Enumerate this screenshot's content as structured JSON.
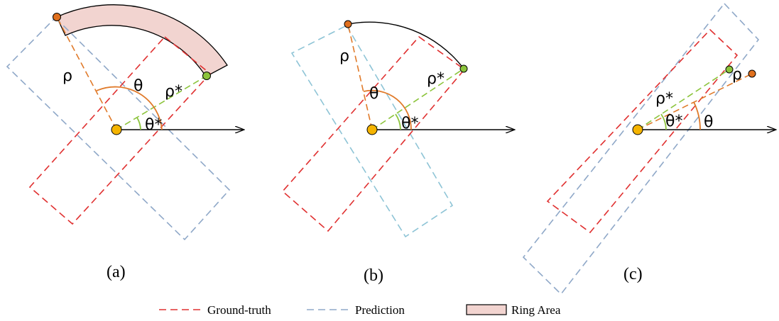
{
  "panels": [
    {
      "caption": "(a)",
      "labels": {
        "rho": "ρ",
        "theta": "θ",
        "rho_star": "ρ*",
        "theta_star": "θ*"
      }
    },
    {
      "caption": "(b)",
      "labels": {
        "rho": "ρ",
        "theta": "θ",
        "rho_star": "ρ*",
        "theta_star": "θ*"
      }
    },
    {
      "caption": "(c)",
      "labels": {
        "rho": "ρ",
        "theta": "θ",
        "rho_star": "ρ*",
        "theta_star": "θ*"
      }
    }
  ],
  "legend": {
    "ground_truth": "Ground-truth",
    "prediction": "Prediction",
    "ring_area": "Ring Area"
  },
  "colors": {
    "ground_truth": "#e03030",
    "prediction": "#8fa8c8",
    "prediction_light": "#8ec4d6",
    "ring_fill": "#f2d4d0",
    "rho_line": "#e07a2a",
    "rho_star_line": "#8cc43c",
    "center": "#f5b400",
    "rho_point": "#e0701e",
    "rho_star_point": "#8cc43c"
  }
}
